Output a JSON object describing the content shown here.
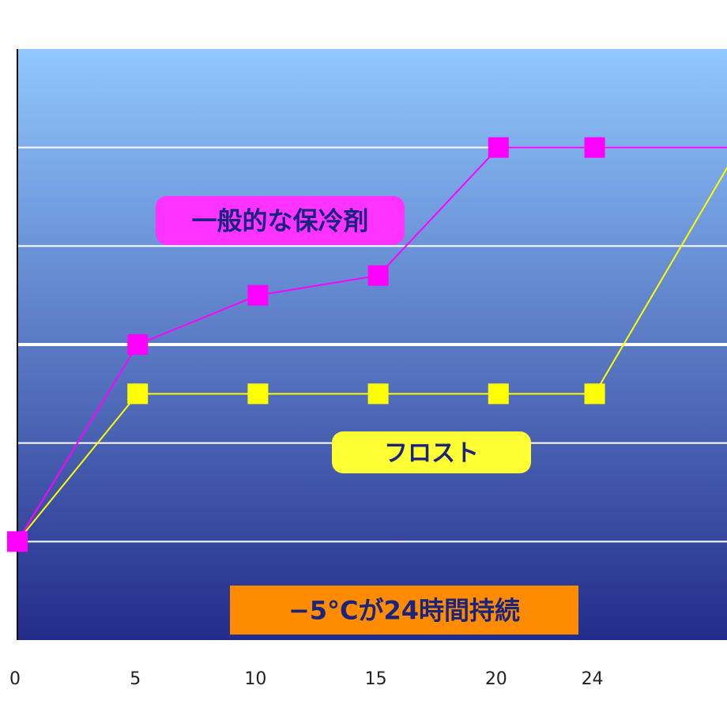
{
  "chart_data": {
    "type": "line",
    "title": "",
    "xlabel": "",
    "ylabel": "",
    "x": [
      0,
      5,
      10,
      15,
      20,
      24,
      30
    ],
    "x_tick_labels": [
      "0",
      "5",
      "10",
      "15",
      "20",
      "24"
    ],
    "xlim": [
      0,
      29.5
    ],
    "ylim": [
      0,
      6
    ],
    "y_grid": [
      1,
      2,
      3,
      4,
      5
    ],
    "grid": true,
    "series": [
      {
        "key": "general",
        "color": "#ff00ff",
        "values": [
          1.0,
          3.0,
          3.5,
          3.7,
          5.0,
          5.0,
          5.0
        ]
      },
      {
        "key": "frost",
        "color": "#ffff00",
        "values": [
          1.0,
          2.5,
          2.5,
          2.5,
          2.5,
          2.5,
          5.0
        ]
      }
    ],
    "annotations": {
      "general": {
        "text": "一般的な保冷剤",
        "bg": "#ff33ff"
      },
      "frost": {
        "text": "フロスト",
        "bg": "#ffff33"
      },
      "note": {
        "text": "−5°Cが24時間持続",
        "bg": "#ff8c00"
      }
    },
    "background": {
      "top_color": "#90c8ff",
      "bottom_color": "#232c8a"
    },
    "legend": "none"
  }
}
